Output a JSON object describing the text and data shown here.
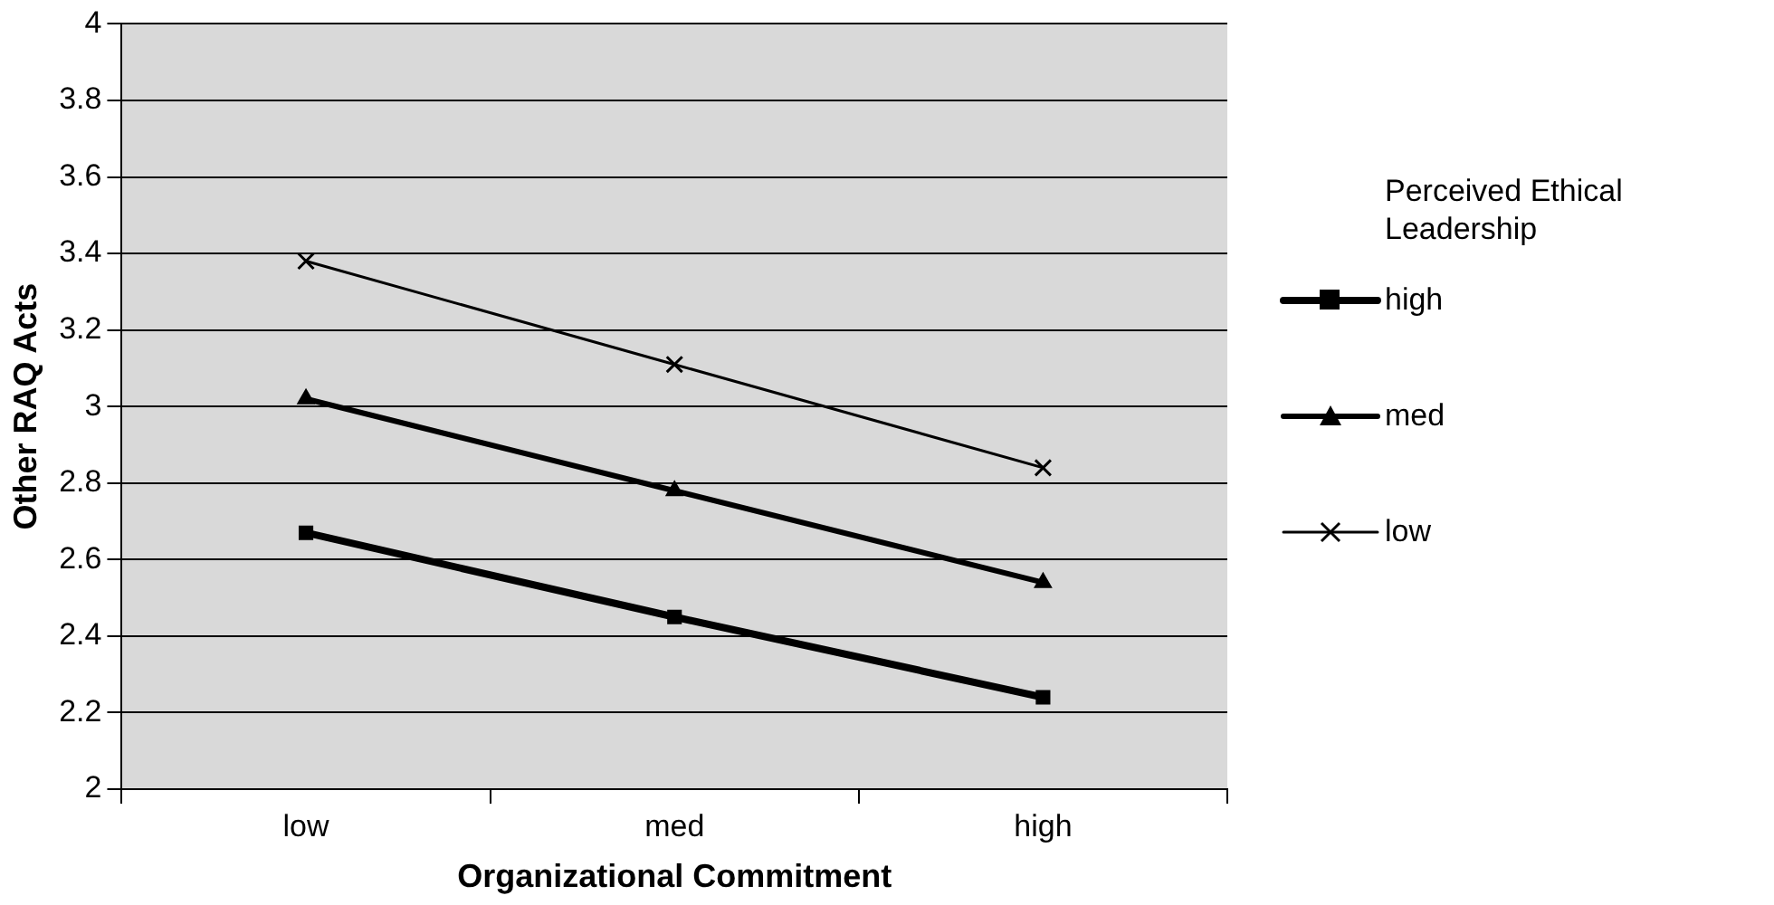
{
  "chart_data": {
    "type": "line",
    "xlabel": "Organizational Commitment",
    "ylabel": "Other RAQ Acts",
    "legend_title": "Perceived Ethical Leadership",
    "categories": [
      "low",
      "med",
      "high"
    ],
    "series": [
      {
        "name": "high",
        "color": "#000000",
        "marker": "square",
        "values": [
          2.67,
          2.45,
          2.24
        ]
      },
      {
        "name": "med",
        "color": "#000000",
        "marker": "triangle",
        "values": [
          3.02,
          2.78,
          2.54
        ]
      },
      {
        "name": "low",
        "color": "#000000",
        "marker": "cross",
        "values": [
          3.38,
          3.11,
          2.84
        ]
      }
    ],
    "ylim": [
      2,
      4
    ],
    "yticks": [
      2,
      2.2,
      2.4,
      2.6,
      2.8,
      3,
      3.2,
      3.4,
      3.6,
      3.8,
      4
    ],
    "grid": "y",
    "legend": "right",
    "line_style": "solid"
  }
}
